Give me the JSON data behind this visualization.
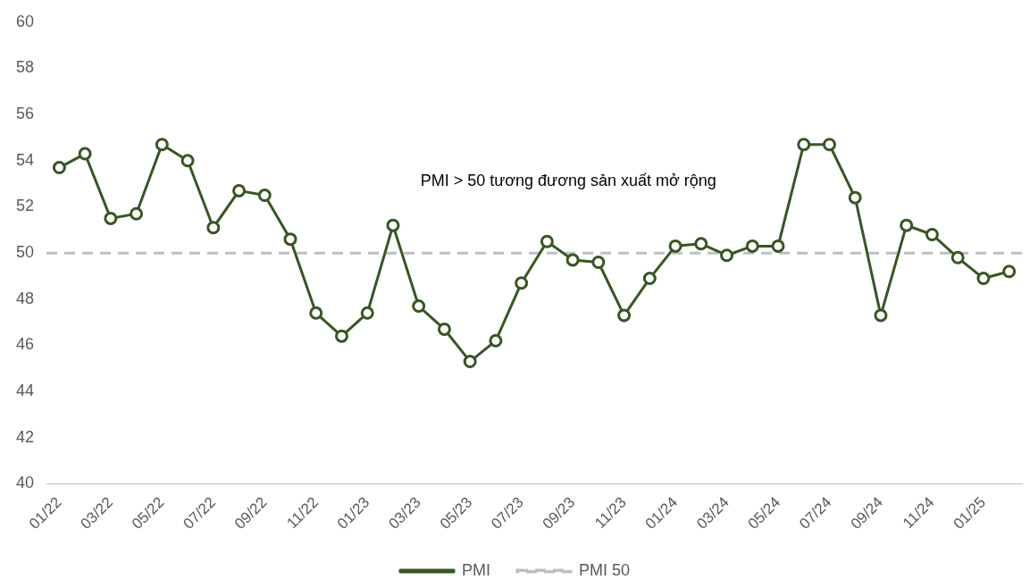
{
  "chart_data": {
    "type": "line",
    "categories": [
      "01/22",
      null,
      "03/22",
      null,
      "05/22",
      null,
      "07/22",
      null,
      "09/22",
      null,
      "11/22",
      null,
      "01/23",
      null,
      "03/23",
      null,
      "05/23",
      null,
      "07/23",
      null,
      "09/23",
      null,
      "11/23",
      null,
      "01/24",
      null,
      "03/24",
      null,
      "05/24",
      null,
      "07/24",
      null,
      "09/24",
      null,
      "11/24",
      null,
      "01/25",
      null
    ],
    "series": [
      {
        "name": "PMI",
        "color": "#375623",
        "values": [
          53.7,
          54.3,
          51.5,
          51.7,
          54.7,
          54.0,
          51.1,
          52.7,
          52.5,
          50.6,
          47.4,
          46.4,
          47.4,
          51.2,
          47.7,
          46.7,
          45.3,
          46.2,
          48.7,
          50.5,
          49.7,
          49.6,
          47.3,
          48.9,
          50.3,
          50.4,
          49.9,
          50.3,
          50.3,
          54.7,
          54.7,
          52.4,
          47.3,
          51.2,
          50.8,
          49.8,
          48.9,
          49.2
        ]
      }
    ],
    "ref_lines": [
      {
        "axis": "y",
        "value": 50,
        "label": "PMI 50",
        "color": "#bfbfbf",
        "line_style": "dashed"
      }
    ],
    "annotations": [
      "PMI > 50 tương đương sản xuất mở rộng"
    ],
    "ylim": [
      40,
      60
    ],
    "yticks": [
      40,
      42,
      44,
      46,
      48,
      50,
      52,
      54,
      56,
      58,
      60
    ],
    "grid": false,
    "legend": "bottom",
    "marker": "circle",
    "line_style": "solid"
  }
}
